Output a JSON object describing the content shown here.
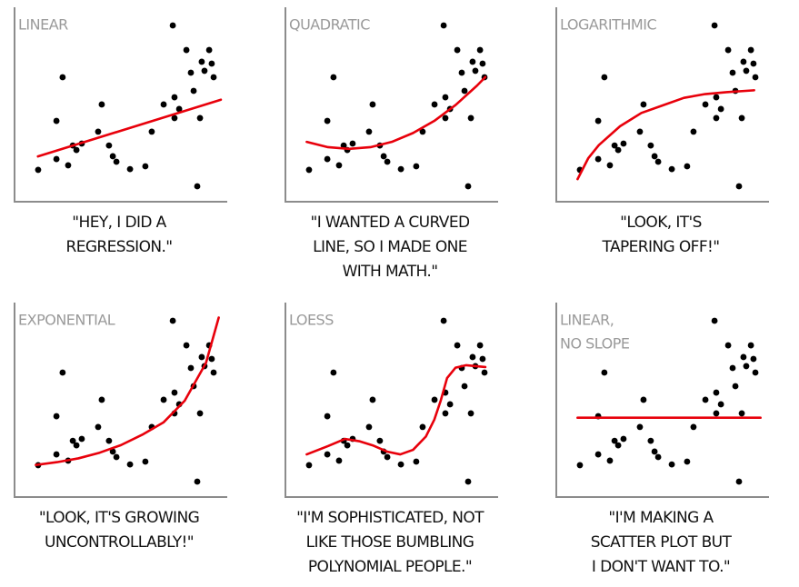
{
  "chart_data": [
    {
      "type": "scatter",
      "title": [
        "LINEAR"
      ],
      "caption": [
        "\"HEY, I DID A",
        "REGRESSION.\""
      ],
      "color": "#000000",
      "xlim": [
        0,
        100
      ],
      "ylim": [
        0,
        100
      ],
      "x": [
        11.1,
        19.7,
        19.7,
        22.6,
        25.2,
        27.4,
        29.1,
        31.6,
        39.3,
        41.0,
        44.4,
        46.2,
        47.9,
        54.3,
        61.5,
        64.5,
        70.1,
        74.4,
        75.2,
        75.2,
        77.4,
        80.8,
        82.9,
        84.2,
        85.9,
        87.2,
        88.0,
        89.3,
        91.5,
        92.7,
        93.6
      ],
      "y": [
        15.9,
        21.6,
        41.8,
        64.9,
        18.3,
        28.8,
        26.4,
        29.8,
        36.1,
        50.5,
        28.8,
        23.1,
        20.2,
        16.3,
        17.8,
        36.1,
        50.5,
        92.3,
        54.3,
        43.3,
        48.1,
        79.3,
        67.3,
        57.7,
        7.2,
        43.3,
        73.1,
        68.3,
        79.3,
        72.1,
        64.9
      ],
      "fit": {
        "color": "#e8000b",
        "x": [
          11,
          97
        ],
        "y": [
          23,
          53
        ]
      }
    },
    {
      "type": "scatter",
      "title": [
        "QUADRATIC"
      ],
      "caption": [
        "\"I WANTED A CURVED",
        "LINE, SO I MADE ONE",
        "WITH MATH.\""
      ],
      "color": "#000000",
      "xlim": [
        0,
        100
      ],
      "ylim": [
        0,
        100
      ],
      "x": [
        11.1,
        19.7,
        19.7,
        22.6,
        25.2,
        27.4,
        29.1,
        31.6,
        39.3,
        41.0,
        44.4,
        46.2,
        47.9,
        54.3,
        61.5,
        64.5,
        70.1,
        74.4,
        75.2,
        75.2,
        77.4,
        80.8,
        82.9,
        84.2,
        85.9,
        87.2,
        88.0,
        89.3,
        91.5,
        92.7,
        93.6
      ],
      "y": [
        15.9,
        21.6,
        41.8,
        64.9,
        18.3,
        28.8,
        26.4,
        29.8,
        36.1,
        50.5,
        28.8,
        23.1,
        20.2,
        16.3,
        17.8,
        36.1,
        50.5,
        92.3,
        54.3,
        43.3,
        48.1,
        79.3,
        67.3,
        57.7,
        7.2,
        43.3,
        73.1,
        68.3,
        79.3,
        72.1,
        64.9
      ],
      "fit": {
        "color": "#e8000b",
        "x": [
          10,
          20,
          30,
          40,
          50,
          60,
          70,
          80,
          90,
          94
        ],
        "y": [
          30.7,
          27.9,
          27,
          27.9,
          30.7,
          35.4,
          41.8,
          50.2,
          60.4,
          65
        ]
      }
    },
    {
      "type": "scatter",
      "title": [
        "LOGARITHMIC"
      ],
      "caption": [
        "\"LOOK, IT'S",
        "TAPERING OFF!\""
      ],
      "color": "#000000",
      "xlim": [
        0,
        100
      ],
      "ylim": [
        0,
        100
      ],
      "x": [
        11.1,
        19.7,
        19.7,
        22.6,
        25.2,
        27.4,
        29.1,
        31.6,
        39.3,
        41.0,
        44.4,
        46.2,
        47.9,
        54.3,
        61.5,
        64.5,
        70.1,
        74.4,
        75.2,
        75.2,
        77.4,
        80.8,
        82.9,
        84.2,
        85.9,
        87.2,
        88.0,
        89.3,
        91.5,
        92.7,
        93.6
      ],
      "y": [
        15.9,
        21.6,
        41.8,
        64.9,
        18.3,
        28.8,
        26.4,
        29.8,
        36.1,
        50.5,
        28.8,
        23.1,
        20.2,
        16.3,
        17.8,
        36.1,
        50.5,
        92.3,
        54.3,
        43.3,
        48.1,
        79.3,
        67.3,
        57.7,
        7.2,
        43.3,
        73.1,
        68.3,
        79.3,
        72.1,
        64.9
      ],
      "fit": {
        "color": "#e8000b",
        "x": [
          10,
          15,
          20,
          30,
          40,
          50,
          60,
          70,
          80,
          93
        ],
        "y": [
          11,
          22,
          29,
          39,
          46,
          50,
          54,
          56,
          57,
          58
        ]
      }
    },
    {
      "type": "scatter",
      "title": [
        "EXPONENTIAL"
      ],
      "caption": [
        "\"LOOK, IT'S GROWING",
        "UNCONTROLLABLY!\""
      ],
      "color": "#000000",
      "xlim": [
        0,
        100
      ],
      "ylim": [
        0,
        100
      ],
      "x": [
        11.1,
        19.7,
        19.7,
        22.6,
        25.2,
        27.4,
        29.1,
        31.6,
        39.3,
        41.0,
        44.4,
        46.2,
        47.9,
        54.3,
        61.5,
        64.5,
        70.1,
        74.4,
        75.2,
        75.2,
        77.4,
        80.8,
        82.9,
        84.2,
        85.9,
        87.2,
        88.0,
        89.3,
        91.5,
        92.7,
        93.6
      ],
      "y": [
        15.9,
        21.6,
        41.8,
        64.9,
        18.3,
        28.8,
        26.4,
        29.8,
        36.1,
        50.5,
        28.8,
        23.1,
        20.2,
        16.3,
        17.8,
        36.1,
        50.5,
        92.3,
        54.3,
        43.3,
        48.1,
        79.3,
        67.3,
        57.7,
        7.2,
        43.3,
        73.1,
        68.3,
        79.3,
        72.1,
        64.9
      ],
      "fit": {
        "color": "#e8000b",
        "x": [
          10,
          20,
          30,
          40,
          50,
          60,
          70,
          80,
          90,
          96
        ],
        "y": [
          16,
          17.5,
          19.5,
          22.5,
          26.5,
          32,
          38.5,
          50,
          70,
          94
        ]
      }
    },
    {
      "type": "scatter",
      "title": [
        "LOESS"
      ],
      "caption": [
        "\"I'M SOPHISTICATED, NOT",
        "LIKE THOSE BUMBLING",
        "POLYNOMIAL PEOPLE.\""
      ],
      "color": "#000000",
      "xlim": [
        0,
        100
      ],
      "ylim": [
        0,
        100
      ],
      "x": [
        11.1,
        19.7,
        19.7,
        22.6,
        25.2,
        27.4,
        29.1,
        31.6,
        39.3,
        41.0,
        44.4,
        46.2,
        47.9,
        54.3,
        61.5,
        64.5,
        70.1,
        74.4,
        75.2,
        75.2,
        77.4,
        80.8,
        82.9,
        84.2,
        85.9,
        87.2,
        88.0,
        89.3,
        91.5,
        92.7,
        93.6
      ],
      "y": [
        15.9,
        21.6,
        41.8,
        64.9,
        18.3,
        28.8,
        26.4,
        29.8,
        36.1,
        50.5,
        28.8,
        23.1,
        20.2,
        16.3,
        17.8,
        36.1,
        50.5,
        92.3,
        54.3,
        43.3,
        48.1,
        79.3,
        67.3,
        57.7,
        7.2,
        43.3,
        73.1,
        68.3,
        79.3,
        72.1,
        64.9
      ],
      "fit": {
        "color": "#e8000b",
        "x": [
          10,
          20,
          28,
          35,
          41,
          48,
          54,
          60,
          66,
          70,
          73,
          76,
          80,
          85,
          94
        ],
        "y": [
          21.6,
          26,
          29.8,
          28.5,
          26.4,
          23,
          21.6,
          24,
          31,
          40,
          50,
          62,
          67.5,
          68.8,
          67.8
        ]
      }
    },
    {
      "type": "scatter",
      "title": [
        "LINEAR,",
        "NO SLOPE"
      ],
      "caption": [
        "\"I'M MAKING A",
        "SCATTER PLOT BUT",
        "I DON'T WANT TO.\""
      ],
      "color": "#000000",
      "xlim": [
        0,
        100
      ],
      "ylim": [
        0,
        100
      ],
      "x": [
        11.1,
        19.7,
        19.7,
        22.6,
        25.2,
        27.4,
        29.1,
        31.6,
        39.3,
        41.0,
        44.4,
        46.2,
        47.9,
        54.3,
        61.5,
        64.5,
        70.1,
        74.4,
        75.2,
        75.2,
        77.4,
        80.8,
        82.9,
        84.2,
        85.9,
        87.2,
        88.0,
        89.3,
        91.5,
        92.7,
        93.6
      ],
      "y": [
        15.9,
        21.6,
        41.8,
        64.9,
        18.3,
        28.8,
        26.4,
        29.8,
        36.1,
        50.5,
        28.8,
        23.1,
        20.2,
        16.3,
        17.8,
        36.1,
        50.5,
        92.3,
        54.3,
        43.3,
        48.1,
        79.3,
        67.3,
        57.7,
        7.2,
        43.3,
        73.1,
        68.3,
        79.3,
        72.1,
        64.9
      ],
      "fit": {
        "color": "#e8000b",
        "x": [
          10,
          96
        ],
        "y": [
          41,
          41
        ]
      }
    }
  ]
}
